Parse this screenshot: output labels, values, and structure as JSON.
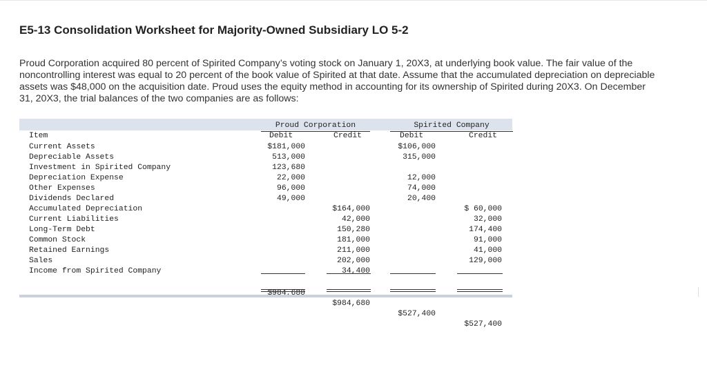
{
  "title": "E5-13 Consolidation Worksheet for Majority-Owned Subsidiary LO 5-2",
  "intro": "Proud Corporation acquired 80 percent of Spirited Company’s voting stock on January 1, 20X3, at underlying book value. The fair value of the noncontrolling interest was equal to 20 percent of the book value of Spirited at that date. Assume that the accumulated depreciation on depreciable assets was $48,000 on the acquisition date. Proud uses the equity method in accounting for its ownership of Spirited during 20X3. On December 31, 20X3, the trial balances of the two companies are as follows:",
  "table": {
    "group_headers": [
      "Proud Corporation",
      "Spirited Company"
    ],
    "item_header": "Item",
    "sub_headers": [
      "Debit",
      "Credit",
      "Debit",
      "Credit"
    ],
    "rows": [
      {
        "item": "Current Assets",
        "pd": "$181,000",
        "pc": "",
        "sd": "$106,000",
        "sc": ""
      },
      {
        "item": "Depreciable Assets",
        "pd": "513,000",
        "pc": "",
        "sd": "315,000",
        "sc": ""
      },
      {
        "item": "Investment in Spirited Company",
        "pd": "123,680",
        "pc": "",
        "sd": "",
        "sc": ""
      },
      {
        "item": "Depreciation Expense",
        "pd": "22,000",
        "pc": "",
        "sd": "12,000",
        "sc": ""
      },
      {
        "item": "Other Expenses",
        "pd": "96,000",
        "pc": "",
        "sd": "74,000",
        "sc": ""
      },
      {
        "item": "Dividends Declared",
        "pd": "49,000",
        "pc": "",
        "sd": "20,400",
        "sc": ""
      },
      {
        "item": "Accumulated Depreciation",
        "pd": "",
        "pc": "$164,000",
        "sd": "",
        "sc": "$ 60,000"
      },
      {
        "item": "Current Liabilities",
        "pd": "",
        "pc": "42,000",
        "sd": "",
        "sc": "32,000"
      },
      {
        "item": "Long-Term Debt",
        "pd": "",
        "pc": "150,280",
        "sd": "",
        "sc": "174,400"
      },
      {
        "item": "Common Stock",
        "pd": "",
        "pc": "181,000",
        "sd": "",
        "sc": "91,000"
      },
      {
        "item": "Retained Earnings",
        "pd": "",
        "pc": "211,000",
        "sd": "",
        "sc": "41,000"
      },
      {
        "item": "Sales",
        "pd": "",
        "pc": "202,000",
        "sd": "",
        "sc": "129,000"
      },
      {
        "item": "Income from Spirited Company",
        "pd": "",
        "pc": "34,400",
        "sd": "",
        "sc": ""
      }
    ],
    "totals": {
      "pd": "$984,680",
      "pc": "$984,680",
      "sd": "$527,400",
      "sc": "$527,400"
    }
  }
}
